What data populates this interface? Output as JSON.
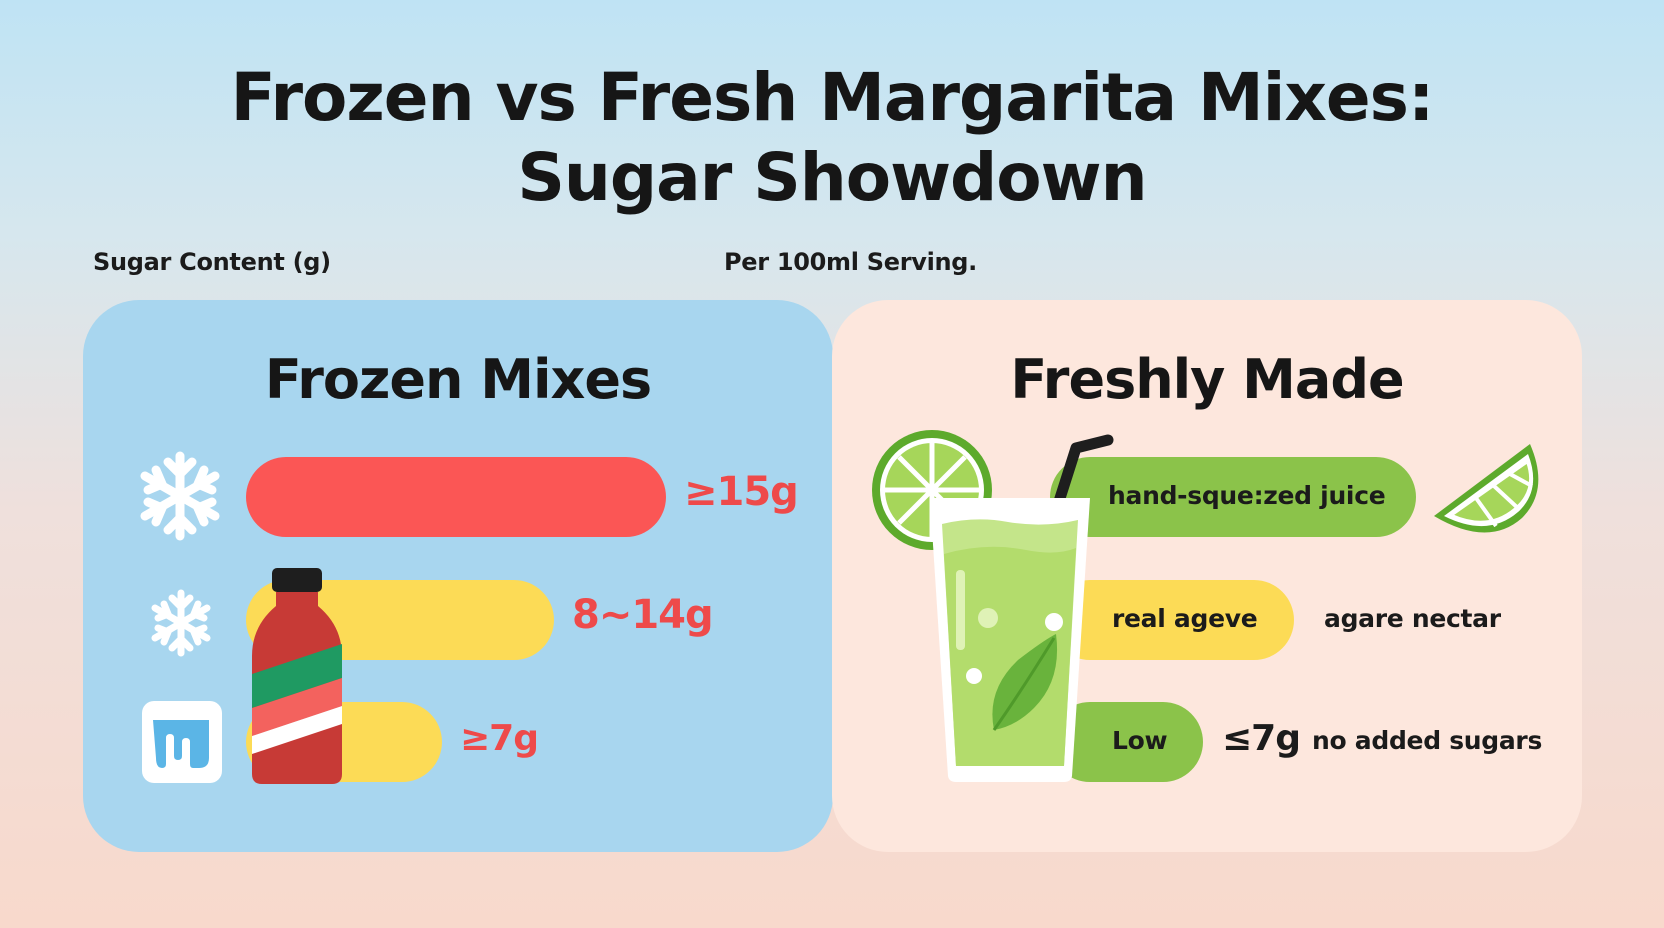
{
  "title_line1": "Frozen vs Fresh Margarita Mixes:",
  "title_line2": "Sugar Showdown",
  "ylabel": "Sugar Content (g)",
  "serving_note": "Per 100ml Serving.",
  "colors": {
    "red": "#fb5655",
    "yellow": "#fcdb56",
    "green": "#8bc34a",
    "frozen_panel": "#a8d6ef",
    "fresh_panel": "#fde7dd",
    "value_text": "#ee4a4a"
  },
  "chart_data": [
    {
      "type": "bar",
      "orientation": "horizontal",
      "title": "Frozen Mixes",
      "categories": [
        "snowflake-icon",
        "small-snowflake-icon",
        "ice-cube-icon"
      ],
      "values": [
        15,
        11,
        7
      ],
      "value_labels": [
        "≥15g",
        "8~14g",
        "≥7g"
      ],
      "bar_colors": [
        "#fb5655",
        "#fcdb56",
        "#fcdb56"
      ],
      "icons": [
        "snowflake-icon",
        "snowflake-icon",
        "ice-cube-icon",
        "bottle-icon"
      ]
    },
    {
      "type": "bar",
      "orientation": "horizontal",
      "title": "Freshly Made",
      "categories": [
        "hand-sque:zed juice",
        "real ageve",
        "Low"
      ],
      "values": [
        12,
        8,
        5
      ],
      "value_labels": [
        "",
        "",
        "≤7g"
      ],
      "annotations": [
        "",
        "agare nectar",
        "no added sugars"
      ],
      "bar_colors": [
        "#8bc34a",
        "#fcdb56",
        "#8bc34a"
      ],
      "icons": [
        "lime-slice-icon",
        "lime-wedge-icon",
        "margarita-glass-icon",
        "straw-icon",
        "mint-leaf-icon"
      ]
    }
  ]
}
